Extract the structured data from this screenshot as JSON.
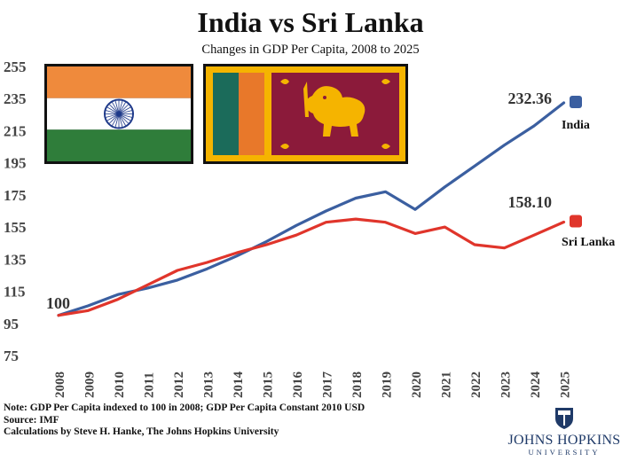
{
  "chart_data": {
    "type": "line",
    "title": "India vs Sri Lanka",
    "subtitle": "Changes in GDP Per Capita, 2008 to 2025",
    "xlabel": "",
    "ylabel": "",
    "x": [
      "2008",
      "2009",
      "2010",
      "2011",
      "2012",
      "2013",
      "2014",
      "2015",
      "2016",
      "2017",
      "2018",
      "2019",
      "2020",
      "2021",
      "2022",
      "2023",
      "2024",
      "2025"
    ],
    "ylim": [
      75,
      255
    ],
    "yticks": [
      "75",
      "95",
      "115",
      "135",
      "155",
      "175",
      "195",
      "215",
      "235",
      "255"
    ],
    "grid": false,
    "series": [
      {
        "name": "India",
        "color": "#3b5fa0",
        "values": [
          100,
          106,
          113,
          117,
          122,
          129,
          137,
          146,
          156,
          165,
          173,
          177,
          166,
          180,
          193,
          206,
          218,
          232.36
        ]
      },
      {
        "name": "Sri Lanka",
        "color": "#e0352b",
        "values": [
          100,
          103,
          110,
          119,
          128,
          133,
          139,
          144,
          150,
          158,
          160,
          158,
          151,
          155,
          144,
          142,
          150,
          158.1
        ]
      }
    ],
    "annotations": {
      "start_label": "100",
      "india_end_label": "232.36",
      "srilanka_end_label": "158.10"
    }
  },
  "notes": {
    "line1": "Note: GDP Per Capita indexed to 100 in 2008; GDP Per Capita Constant 2010 USD",
    "line2": "Source: IMF",
    "line3": "Calculations by Steve H. Hanke, The Johns Hopkins University"
  },
  "logo": {
    "name": "JOHNS HOPKINS",
    "sub": "UNIVERSITY",
    "color": "#1f3a68"
  },
  "flags": {
    "india": {
      "saffron": "#ef8a3c",
      "white": "#ffffff",
      "green": "#2f7d3a",
      "chakra": "#1f3a8a"
    },
    "sri_lanka": {
      "gold": "#f5b400",
      "green": "#1b6b5a",
      "orange": "#e8782a",
      "maroon": "#8b1a3a"
    }
  }
}
